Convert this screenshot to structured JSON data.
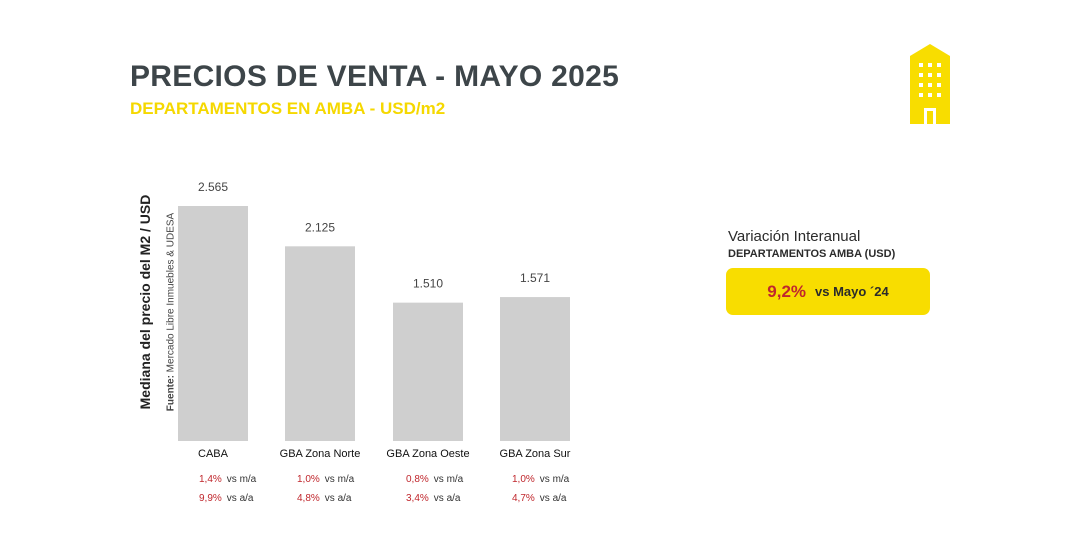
{
  "header": {
    "title": "PRECIOS DE VENTA -  MAYO 2025",
    "subtitle": "DEPARTAMENTOS EN AMBA - USD/m2"
  },
  "icons": {
    "building": "building-icon"
  },
  "colors": {
    "bar": "#cfcfcf",
    "accent": "#f8dd00",
    "negative_red": "#c0272d",
    "title": "#3d4549"
  },
  "chart_data": {
    "type": "bar",
    "categories": [
      "CABA",
      "GBA Zona Norte",
      "GBA Zona Oeste",
      "GBA Zona Sur"
    ],
    "values": [
      2565,
      2125,
      1510,
      1571
    ],
    "value_labels": [
      "2.565",
      "2.125",
      "1.510",
      "1.571"
    ],
    "ylabel": "Mediana del precio del M2 / USD",
    "source_label": "Fuente:",
    "source_text": "Mercado Libre Inmuebles & UDESA",
    "ylim": [
      0,
      2565
    ],
    "grid": false,
    "legend": "none"
  },
  "stats": [
    {
      "mm": "1,4%",
      "aa": "9,9%"
    },
    {
      "mm": "1,0%",
      "aa": "4,8%"
    },
    {
      "mm": "0,8%",
      "aa": "3,4%"
    },
    {
      "mm": "1,0%",
      "aa": "4,7%"
    }
  ],
  "stats_labels": {
    "mm": "vs m/a",
    "aa": "vs a/a"
  },
  "variation": {
    "title": "Variación Interanual",
    "subtitle": "DEPARTAMENTOS AMBA (USD)",
    "value": "9,2%",
    "vs": "vs Mayo ´24"
  }
}
